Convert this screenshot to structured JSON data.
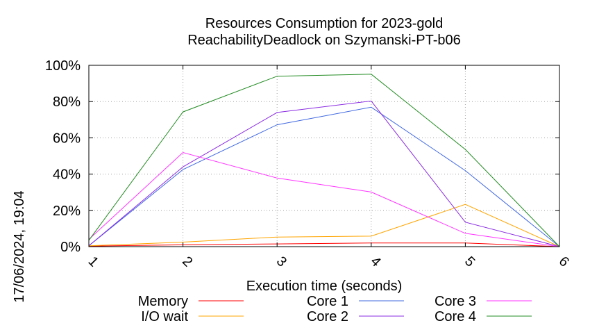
{
  "chart_data": {
    "type": "line",
    "title_line1": "Resources Consumption for 2023-gold",
    "title_line2": "ReachabilityDeadlock on Szymanski-PT-b06",
    "xlabel": "Execution time (seconds)",
    "ylabel": "",
    "side_label": "17/06/2024, 19:04",
    "x": [
      1,
      2,
      3,
      4,
      5,
      6
    ],
    "xlim": [
      1,
      6
    ],
    "ylim": [
      0,
      100
    ],
    "y_ticks": [
      0,
      20,
      40,
      60,
      80,
      100
    ],
    "y_tick_labels": [
      "0%",
      "20%",
      "40%",
      "60%",
      "80%",
      "100%"
    ],
    "x_tick_labels": [
      "1",
      "2",
      "3",
      "4",
      "5",
      "6"
    ],
    "grid": true,
    "legend_position": "bottom",
    "series": [
      {
        "name": "Memory",
        "color": "#ff0000",
        "values": [
          0.3,
          1.0,
          1.5,
          2.0,
          2.0,
          0
        ]
      },
      {
        "name": "I/O wait",
        "color": "#ffa500",
        "values": [
          0.5,
          2.5,
          5.3,
          5.8,
          23.3,
          0
        ]
      },
      {
        "name": "Core 1",
        "color": "#4169e1",
        "values": [
          0.5,
          42.5,
          67.2,
          76.9,
          41.9,
          0
        ]
      },
      {
        "name": "Core 2",
        "color": "#8a2be2",
        "values": [
          0.5,
          44.0,
          74.0,
          80.3,
          13.5,
          0
        ]
      },
      {
        "name": "Core 3",
        "color": "#ff33ff",
        "values": [
          4.0,
          51.9,
          37.8,
          30.1,
          7.3,
          0
        ]
      },
      {
        "name": "Core 4",
        "color": "#228b22",
        "values": [
          3.5,
          74.3,
          94.0,
          95.1,
          53.6,
          0
        ]
      }
    ]
  }
}
